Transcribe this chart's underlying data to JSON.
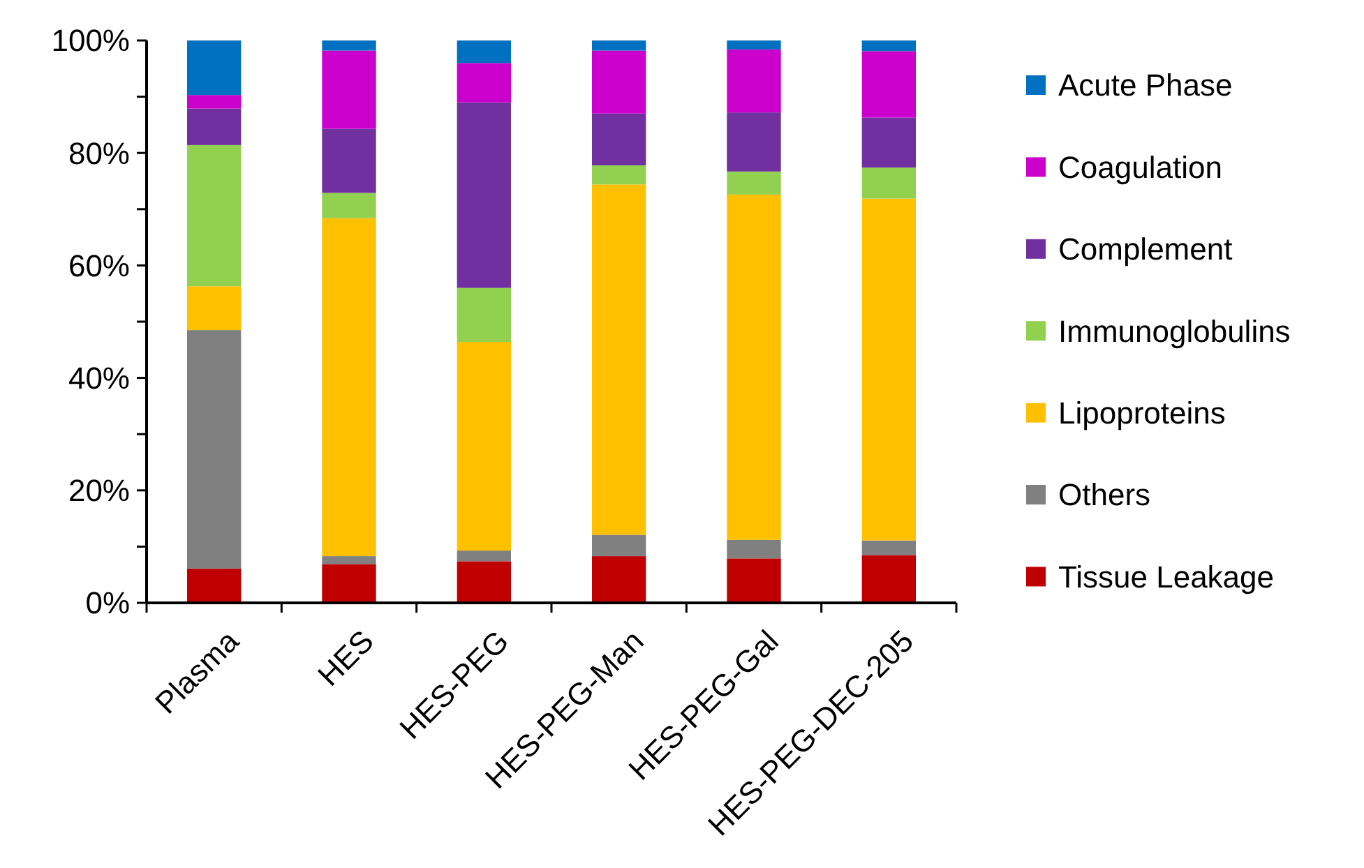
{
  "chart_data": {
    "type": "bar",
    "stacked": true,
    "categories": [
      "Plasma",
      "HES",
      "HES-PEG",
      "HES-PEG-Man",
      "HES-PEG-Gal",
      "HES-PEG-DEC-205"
    ],
    "series": [
      {
        "name": "Tissue Leakage",
        "color": "#c00000",
        "values": [
          6.1,
          6.9,
          7.4,
          8.3,
          7.9,
          8.5
        ]
      },
      {
        "name": "Others",
        "color": "#808080",
        "values": [
          42.4,
          1.4,
          1.9,
          3.8,
          3.3,
          2.6
        ]
      },
      {
        "name": "Lipoproteins",
        "color": "#ffc000",
        "values": [
          7.8,
          60.1,
          37.1,
          62.3,
          61.4,
          60.8
        ]
      },
      {
        "name": "Immunoglobulins",
        "color": "#92d050",
        "values": [
          25.1,
          4.5,
          9.6,
          3.4,
          4.1,
          5.5
        ]
      },
      {
        "name": "Complement",
        "color": "#7030a0",
        "values": [
          6.5,
          11.4,
          33.0,
          9.2,
          10.5,
          8.9
        ]
      },
      {
        "name": "Coagulation",
        "color": "#cc00cc",
        "values": [
          2.4,
          13.9,
          7.0,
          11.2,
          11.2,
          11.8
        ]
      },
      {
        "name": "Acute Phase",
        "color": "#0070c0",
        "values": [
          9.7,
          1.8,
          4.0,
          1.8,
          1.6,
          1.9
        ]
      }
    ],
    "ylim": [
      0,
      100
    ],
    "yticks": [
      {
        "value": 0,
        "label": "0%"
      },
      {
        "value": 10,
        "label": null
      },
      {
        "value": 20,
        "label": "20%"
      },
      {
        "value": 30,
        "label": null
      },
      {
        "value": 40,
        "label": "40%"
      },
      {
        "value": 50,
        "label": null
      },
      {
        "value": 60,
        "label": "60%"
      },
      {
        "value": 70,
        "label": null
      },
      {
        "value": 80,
        "label": "80%"
      },
      {
        "value": 90,
        "label": null
      },
      {
        "value": 100,
        "label": "100%"
      }
    ],
    "grid": false,
    "legend": "right"
  }
}
